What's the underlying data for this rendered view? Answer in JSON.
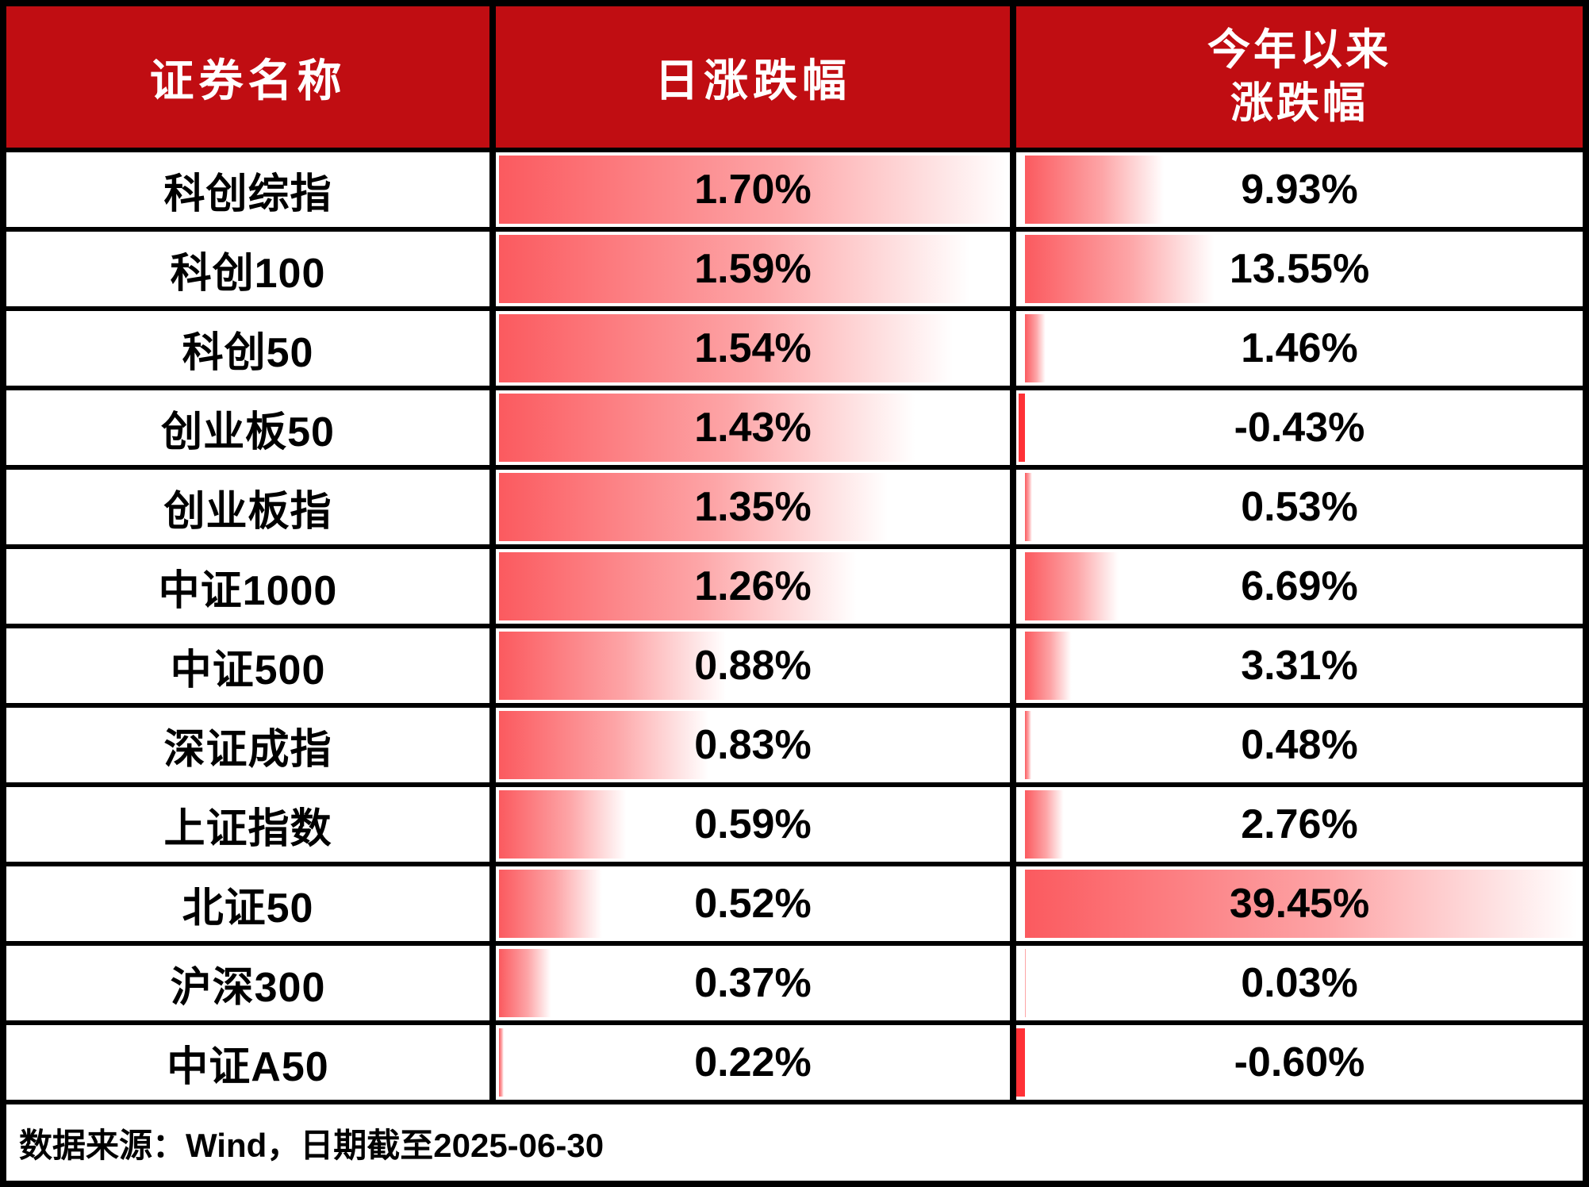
{
  "header": {
    "col1": "证券名称",
    "col2": "日涨跌幅",
    "col3_line1": "今年以来",
    "col3_line2": "涨跌幅"
  },
  "footer": {
    "text": "数据来源：Wind，日期截至2025-06-30"
  },
  "colors": {
    "header_bg": "#c00d12",
    "header_text": "#ffffff",
    "bar_red": "#fb5a5f",
    "bar_mid": "#fda5a7",
    "negative_bar": "#ff3136",
    "border": "#000000",
    "text": "#000000"
  },
  "chart_data": {
    "type": "table",
    "title": "",
    "columns": [
      "证券名称",
      "日涨跌幅",
      "今年以来涨跌幅"
    ],
    "units": "percent",
    "rows": [
      {
        "name": "科创综指",
        "daily": "1.70%",
        "daily_value": 1.7,
        "ytd": "9.93%",
        "ytd_value": 9.93
      },
      {
        "name": "科创100",
        "daily": "1.59%",
        "daily_value": 1.59,
        "ytd": "13.55%",
        "ytd_value": 13.55
      },
      {
        "name": "科创50",
        "daily": "1.54%",
        "daily_value": 1.54,
        "ytd": "1.46%",
        "ytd_value": 1.46
      },
      {
        "name": "创业板50",
        "daily": "1.43%",
        "daily_value": 1.43,
        "ytd": "-0.43%",
        "ytd_value": -0.43
      },
      {
        "name": "创业板指",
        "daily": "1.35%",
        "daily_value": 1.35,
        "ytd": "0.53%",
        "ytd_value": 0.53
      },
      {
        "name": "中证1000",
        "daily": "1.26%",
        "daily_value": 1.26,
        "ytd": "6.69%",
        "ytd_value": 6.69
      },
      {
        "name": "中证500",
        "daily": "0.88%",
        "daily_value": 0.88,
        "ytd": "3.31%",
        "ytd_value": 3.31
      },
      {
        "name": "深证成指",
        "daily": "0.83%",
        "daily_value": 0.83,
        "ytd": "0.48%",
        "ytd_value": 0.48
      },
      {
        "name": "上证指数",
        "daily": "0.59%",
        "daily_value": 0.59,
        "ytd": "2.76%",
        "ytd_value": 2.76
      },
      {
        "name": "北证50",
        "daily": "0.52%",
        "daily_value": 0.52,
        "ytd": "39.45%",
        "ytd_value": 39.45
      },
      {
        "name": "沪深300",
        "daily": "0.37%",
        "daily_value": 0.37,
        "ytd": "0.03%",
        "ytd_value": 0.03
      },
      {
        "name": "中证A50",
        "daily": "0.22%",
        "daily_value": 0.22,
        "ytd": "-0.60%",
        "ytd_value": -0.6
      }
    ],
    "data_bars": {
      "daily": {
        "style": "gradient-red",
        "min": 0.22,
        "max": 1.7
      },
      "ytd": {
        "style": "gradient-red-with-negative-solid-red",
        "min": -0.6,
        "max": 39.45
      }
    },
    "source_note": "数据来源：Wind，日期截至2025-06-30"
  }
}
